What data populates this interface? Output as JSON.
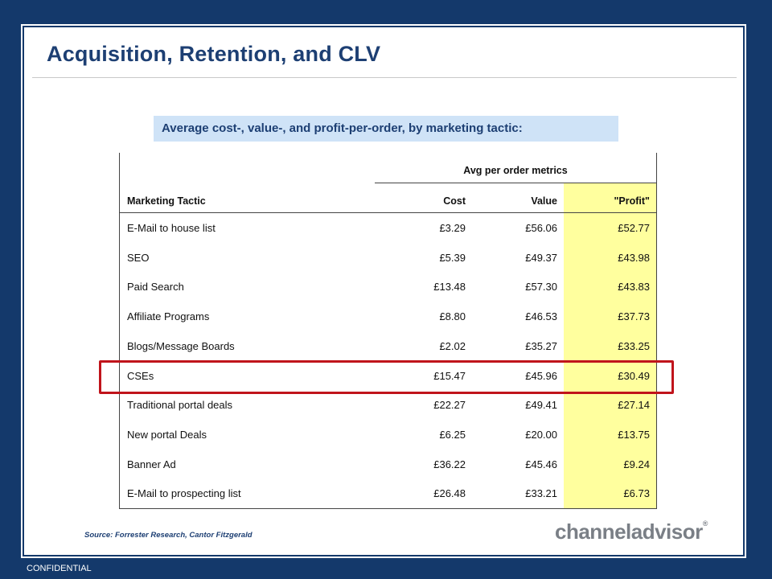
{
  "slide": {
    "title": "Acquisition, Retention, and CLV",
    "subtitle": "Average cost-, value-, and profit-per-order, by marketing tactic:",
    "source": "Source: Forrester Research, Cantor Fitzgerald",
    "logo_text": "channeladvisor",
    "logo_mark": "®",
    "footer": "CONFIDENTIAL"
  },
  "table": {
    "group_header": "Avg per order metrics",
    "headers": {
      "tactic": "Marketing Tactic",
      "cost": "Cost",
      "value": "Value",
      "profit": "\"Profit\""
    },
    "highlight_color": "#ffff9e",
    "outline_color": "#c0141b",
    "highlighted_row": "CSEs",
    "rows": [
      {
        "tactic": "E-Mail to house list",
        "cost": "£3.29",
        "value": "£56.06",
        "profit": "£52.77"
      },
      {
        "tactic": "SEO",
        "cost": "£5.39",
        "value": "£49.37",
        "profit": "£43.98"
      },
      {
        "tactic": "Paid Search",
        "cost": "£13.48",
        "value": "£57.30",
        "profit": "£43.83"
      },
      {
        "tactic": "Affiliate Programs",
        "cost": "£8.80",
        "value": "£46.53",
        "profit": "£37.73"
      },
      {
        "tactic": "Blogs/Message Boards",
        "cost": "£2.02",
        "value": "£35.27",
        "profit": "£33.25"
      },
      {
        "tactic": "CSEs",
        "cost": "£15.47",
        "value": "£45.96",
        "profit": "£30.49"
      },
      {
        "tactic": "Traditional portal deals",
        "cost": "£22.27",
        "value": "£49.41",
        "profit": "£27.14"
      },
      {
        "tactic": "New portal Deals",
        "cost": "£6.25",
        "value": "£20.00",
        "profit": "£13.75"
      },
      {
        "tactic": "Banner Ad",
        "cost": "£36.22",
        "value": "£45.46",
        "profit": "£9.24"
      },
      {
        "tactic": "E-Mail to prospecting list",
        "cost": "£26.48",
        "value": "£33.21",
        "profit": "£6.73"
      }
    ]
  }
}
